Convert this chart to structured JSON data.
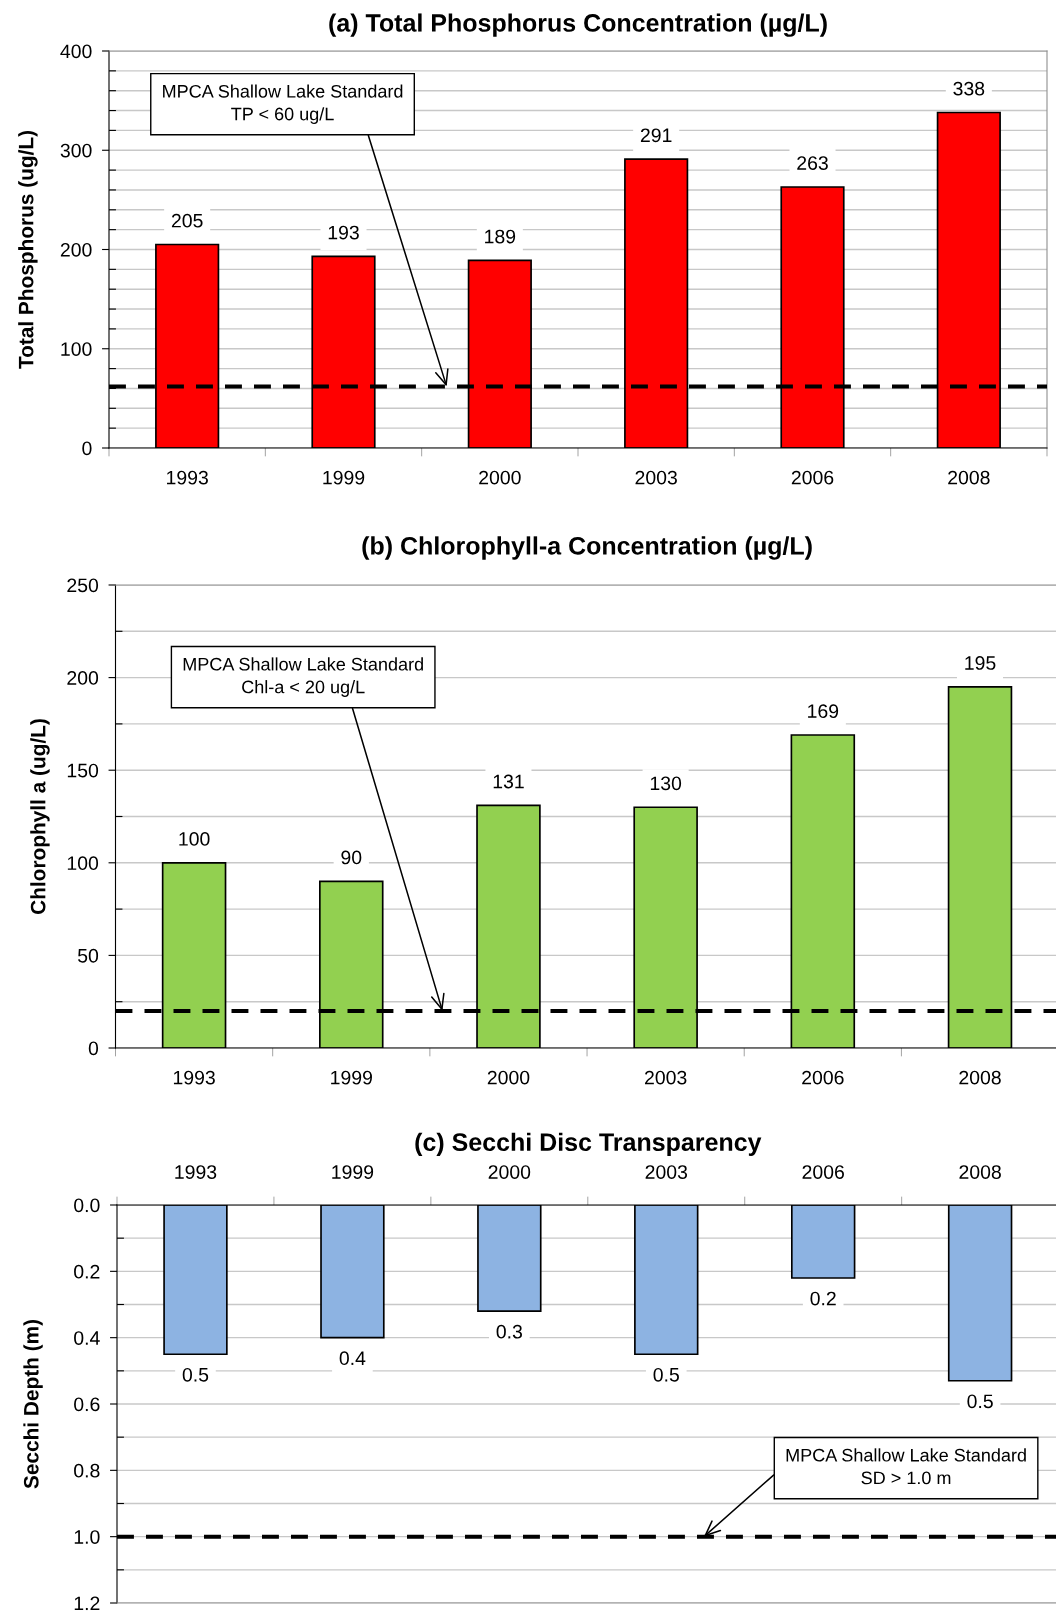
{
  "chart_data": [
    {
      "type": "bar",
      "title": "(a) Total Phosphorus Concentration (µg/L)",
      "ylabel": "Total Phosphorus (ug/L)",
      "categories": [
        "1993",
        "1999",
        "2000",
        "2003",
        "2006",
        "2008"
      ],
      "values": [
        205,
        193,
        189,
        291,
        263,
        338
      ],
      "color": "#ff0000",
      "ylim": [
        0,
        400
      ],
      "yticks": [
        0,
        {
          "value": 20,
          "label": null
        },
        {
          "value": 40,
          "label": null
        },
        {
          "value": 60,
          "label": null
        },
        {
          "value": 80,
          "label": null
        },
        100,
        {
          "value": 120,
          "label": null
        },
        {
          "value": 140,
          "label": null
        },
        {
          "value": 160,
          "label": null
        },
        {
          "value": 180,
          "label": null
        },
        200,
        {
          "value": 220,
          "label": null
        },
        {
          "value": 240,
          "label": null
        },
        {
          "value": 260,
          "label": null
        },
        {
          "value": 280,
          "label": null
        },
        300,
        {
          "value": 320,
          "label": null
        },
        {
          "value": 340,
          "label": null
        },
        {
          "value": 360,
          "label": null
        },
        {
          "value": 380,
          "label": null
        },
        400
      ],
      "grid": "y",
      "data_labels": true,
      "ref_lines": [
        {
          "axis": "y",
          "value": 62,
          "label": "MPCA Shallow Lake Standard\nTP < 60 ug/L",
          "color": "#000000",
          "line_style": "dashed"
        }
      ]
    },
    {
      "type": "bar",
      "title": "(b) Chlorophyll-a Concentration (µg/L)",
      "ylabel": "Chlorophyll a (ug/L)",
      "categories": [
        "1993",
        "1999",
        "2000",
        "2003",
        "2006",
        "2008"
      ],
      "values": [
        100,
        90,
        131,
        130,
        169,
        195
      ],
      "color": "#92d050",
      "ylim": [
        0,
        250
      ],
      "yticks": [
        0,
        {
          "value": 25,
          "label": null
        },
        50,
        {
          "value": 75,
          "label": null
        },
        100,
        {
          "value": 125,
          "label": null
        },
        150,
        {
          "value": 175,
          "label": null
        },
        200,
        {
          "value": 225,
          "label": null
        },
        250
      ],
      "grid": "y",
      "data_labels": true,
      "ref_lines": [
        {
          "axis": "y",
          "value": 20,
          "label": "MPCA Shallow Lake Standard\nChl-a < 20 ug/L",
          "color": "#000000",
          "line_style": "dashed"
        }
      ]
    },
    {
      "type": "bar",
      "title": "(c) Secchi Disc Transparency",
      "ylabel": "Secchi Depth (m)",
      "categories": [
        "1993",
        "1999",
        "2000",
        "2003",
        "2006",
        "2008"
      ],
      "values": [
        0.45,
        0.4,
        0.32,
        0.45,
        0.22,
        0.53
      ],
      "value_labels": [
        "0.5",
        "0.4",
        "0.3",
        "0.5",
        "0.2",
        "0.5"
      ],
      "color": "#8db3e2",
      "ylim": [
        1.2,
        0
      ],
      "yticks": [
        {
          "value": 0,
          "label": "0.0"
        },
        {
          "value": 0.1,
          "label": null
        },
        {
          "value": 0.2,
          "label": "0.2"
        },
        {
          "value": 0.3,
          "label": null
        },
        {
          "value": 0.4,
          "label": "0.4"
        },
        {
          "value": 0.5,
          "label": null
        },
        {
          "value": 0.6,
          "label": "0.6"
        },
        {
          "value": 0.7,
          "label": null
        },
        {
          "value": 0.8,
          "label": "0.8"
        },
        {
          "value": 0.9,
          "label": null
        },
        {
          "value": 1.0,
          "label": "1.0"
        },
        {
          "value": 1.1,
          "label": null
        },
        {
          "value": 1.2,
          "label": "1.2"
        }
      ],
      "grid": "y",
      "ref_lines": [
        {
          "axis": "y",
          "value": 1.0,
          "label": "MPCA Shallow Lake Standard\nSD > 1.0 m",
          "color": "#000000",
          "line_style": "dashed"
        }
      ]
    }
  ]
}
